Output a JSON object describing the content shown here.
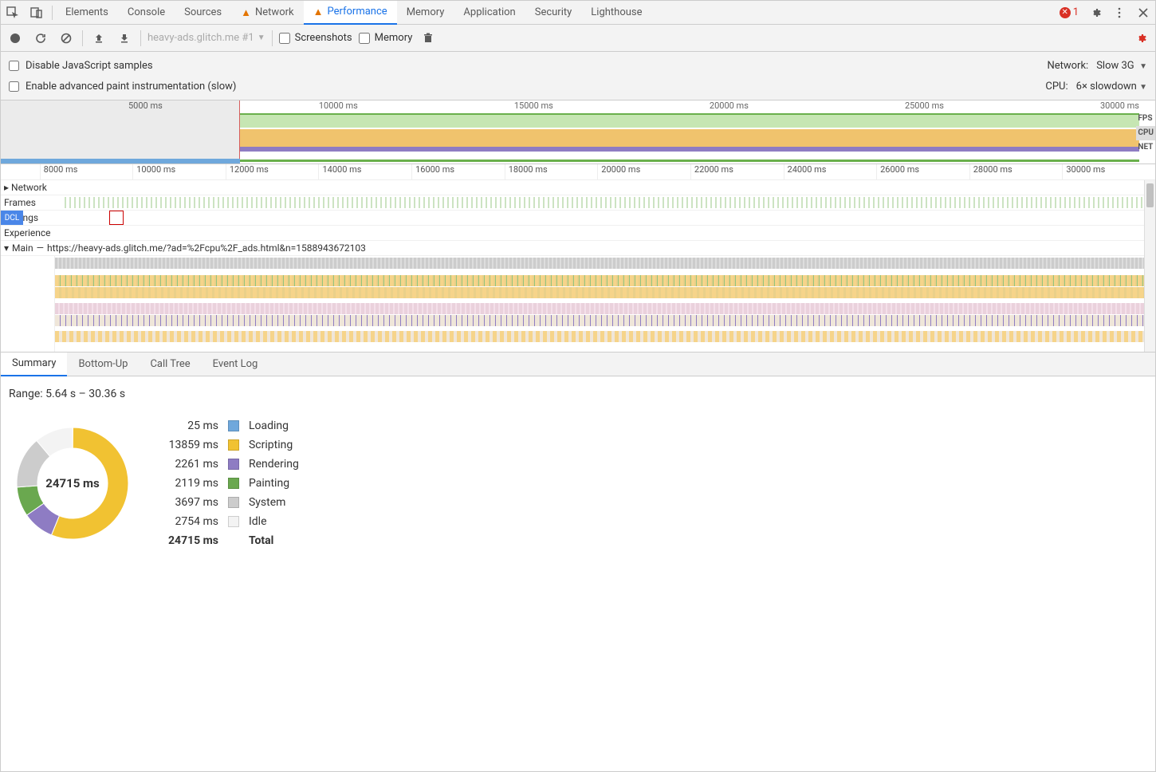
{
  "tabs": {
    "elements": "Elements",
    "console": "Console",
    "sources": "Sources",
    "network": "Network",
    "performance": "Performance",
    "memory": "Memory",
    "application": "Application",
    "security": "Security",
    "lighthouse": "Lighthouse"
  },
  "error_count": "1",
  "perf_toolbar": {
    "recording": "heavy-ads.glitch.me #1",
    "screenshots": "Screenshots",
    "memory": "Memory"
  },
  "options": {
    "disable_js": "Disable JavaScript samples",
    "enable_paint": "Enable advanced paint instrumentation (slow)",
    "network_label": "Network:",
    "network_value": "Slow 3G",
    "cpu_label": "CPU:",
    "cpu_value": "6× slowdown"
  },
  "overview": {
    "ticks": [
      "5000 ms",
      "10000 ms",
      "15000 ms",
      "20000 ms",
      "25000 ms",
      "30000 ms"
    ],
    "lbls": {
      "fps": "FPS",
      "cpu": "CPU",
      "net": "NET"
    }
  },
  "ruler_ticks": [
    "8000 ms",
    "10000 ms",
    "12000 ms",
    "14000 ms",
    "16000 ms",
    "18000 ms",
    "20000 ms",
    "22000 ms",
    "24000 ms",
    "26000 ms",
    "28000 ms",
    "30000 ms"
  ],
  "tracks": {
    "network": "Network",
    "frames": "Frames",
    "timings": "Timings",
    "experience": "Experience",
    "dcl": "DCL",
    "main": "Main",
    "main_url": "https://heavy-ads.glitch.me/?ad=%2Fcpu%2F_ads.html&n=1588943672103"
  },
  "bottom_tabs": {
    "summary": "Summary",
    "bottomup": "Bottom-Up",
    "calltree": "Call Tree",
    "eventlog": "Event Log"
  },
  "summary": {
    "range": "Range: 5.64 s – 30.36 s",
    "total_ms": "24715 ms",
    "items": [
      {
        "ms": "25 ms",
        "label": "Loading",
        "color": "#6fa8dc"
      },
      {
        "ms": "13859 ms",
        "label": "Scripting",
        "color": "#f1c232"
      },
      {
        "ms": "2261 ms",
        "label": "Rendering",
        "color": "#8e7cc3"
      },
      {
        "ms": "2119 ms",
        "label": "Painting",
        "color": "#6aa84f"
      },
      {
        "ms": "3697 ms",
        "label": "System",
        "color": "#cccccc"
      },
      {
        "ms": "2754 ms",
        "label": "Idle",
        "color": "#f3f3f3"
      }
    ],
    "total_label": "Total",
    "donut": {
      "values": [
        25,
        13859,
        2261,
        2119,
        3697,
        2754
      ],
      "colors": [
        "#6fa8dc",
        "#f1c232",
        "#8e7cc3",
        "#6aa84f",
        "#cccccc",
        "#f3f3f3"
      ]
    }
  }
}
